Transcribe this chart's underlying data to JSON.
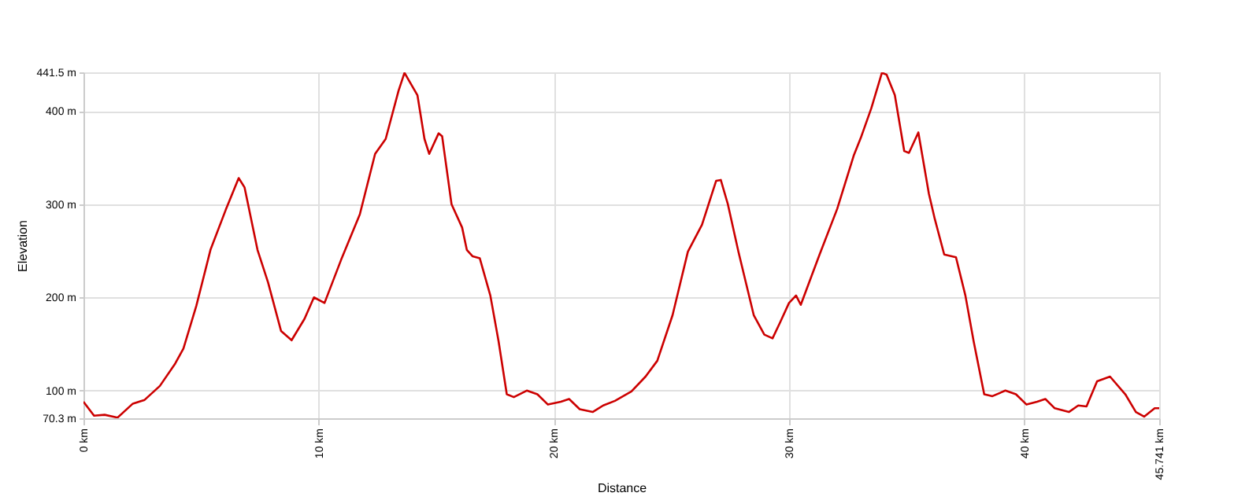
{
  "chart_data": {
    "type": "line",
    "xlabel": "Distance",
    "ylabel": "Elevation",
    "x": [
      0,
      0.45,
      0.9,
      1.45,
      2.1,
      2.6,
      3.25,
      3.9,
      4.25,
      4.8,
      5.4,
      6.05,
      6.6,
      6.85,
      7.4,
      7.85,
      8.4,
      8.85,
      9.4,
      9.8,
      10.25,
      10.95,
      11.75,
      12.4,
      12.85,
      13.4,
      13.65,
      14.2,
      14.5,
      14.7,
      15.1,
      15.25,
      15.65,
      16.1,
      16.3,
      16.55,
      16.85,
      17.3,
      17.65,
      18.0,
      18.3,
      18.85,
      19.3,
      19.75,
      20.3,
      20.65,
      21.1,
      21.65,
      22.1,
      22.6,
      23.3,
      23.9,
      24.4,
      25.05,
      25.7,
      26.3,
      26.9,
      27.1,
      27.4,
      27.85,
      28.5,
      28.95,
      29.3,
      29.6,
      30.0,
      30.3,
      30.5,
      31.3,
      32.05,
      32.75,
      33.05,
      33.5,
      33.95,
      34.15,
      34.5,
      34.9,
      35.1,
      35.5,
      35.95,
      36.2,
      36.6,
      37.1,
      37.5,
      37.85,
      38.3,
      38.65,
      39.2,
      39.65,
      40.1,
      40.55,
      40.9,
      41.3,
      41.9,
      42.3,
      42.65,
      43.1,
      43.65,
      44.3,
      44.75,
      45.1,
      45.55,
      45.741
    ],
    "series": [
      {
        "color": "#cc0000",
        "values": [
          88,
          73,
          74,
          71,
          86,
          90,
          105,
          129,
          145,
          191,
          251,
          294,
          328,
          318,
          251,
          216,
          164,
          154,
          177,
          200,
          194,
          240,
          289,
          354,
          370,
          422,
          441,
          417,
          370,
          354,
          376,
          373,
          300,
          275,
          251,
          244,
          242,
          202,
          153,
          96,
          93,
          100,
          96,
          85,
          88,
          91,
          80,
          77,
          84,
          89,
          99,
          115,
          132,
          181,
          249,
          278,
          325,
          326,
          300,
          249,
          181,
          160,
          156,
          172,
          194,
          202,
          192,
          246,
          295,
          352,
          371,
          403,
          441,
          439,
          417,
          357,
          355,
          377,
          311,
          284,
          246,
          243,
          202,
          153,
          96,
          94,
          100,
          96,
          85,
          88,
          91,
          81,
          77,
          84,
          83,
          110,
          115,
          96,
          77,
          72,
          81,
          81
        ]
      }
    ],
    "xlim": [
      0,
      45.741
    ],
    "ylim": [
      70.3,
      441.5
    ],
    "xticks": [
      {
        "value": 0,
        "label": "0 km"
      },
      {
        "value": 10,
        "label": "10 km"
      },
      {
        "value": 20,
        "label": "20 km"
      },
      {
        "value": 30,
        "label": "30 km"
      },
      {
        "value": 40,
        "label": "40 km"
      },
      {
        "value": 45.741,
        "label": "45.741 km"
      }
    ],
    "yticks": [
      {
        "value": 70.3,
        "label": "70.3 m"
      },
      {
        "value": 100,
        "label": "100 m"
      },
      {
        "value": 200,
        "label": "200 m"
      },
      {
        "value": 300,
        "label": "300 m"
      },
      {
        "value": 400,
        "label": "400 m"
      },
      {
        "value": 441.5,
        "label": "441.5 m"
      }
    ],
    "grid": true,
    "marker": "none",
    "line_style": "solid"
  }
}
